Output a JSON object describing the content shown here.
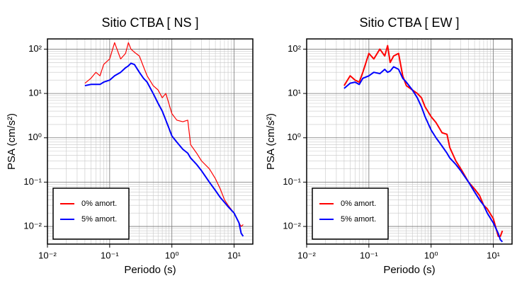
{
  "chart_data": [
    {
      "type": "line",
      "title": "Sitio CTBA [ NS ]",
      "xlabel": "Periodo (s)",
      "ylabel": "PSA (cm/s²)",
      "xscale": "log",
      "yscale": "log",
      "grid": true,
      "legend": "lower left",
      "xlim": [
        0.01,
        20
      ],
      "ylim": [
        0.004,
        170
      ],
      "xticks": [
        {
          "value": 0.01,
          "label": "10⁻²"
        },
        {
          "value": 0.1,
          "label": "10⁻¹"
        },
        {
          "value": 1,
          "label": "10⁰"
        },
        {
          "value": 10,
          "label": "10¹"
        }
      ],
      "yticks": [
        {
          "value": 0.01,
          "label": "10⁻²"
        },
        {
          "value": 0.1,
          "label": "10⁻¹"
        },
        {
          "value": 1,
          "label": "10⁰"
        },
        {
          "value": 10,
          "label": "10¹"
        },
        {
          "value": 100,
          "label": "10²"
        }
      ],
      "x": [
        0.04,
        0.05,
        0.06,
        0.07,
        0.08,
        0.1,
        0.12,
        0.15,
        0.18,
        0.2,
        0.22,
        0.25,
        0.3,
        0.35,
        0.4,
        0.5,
        0.6,
        0.7,
        0.8,
        1.0,
        1.2,
        1.5,
        1.8,
        2,
        2.5,
        3,
        4,
        5,
        6,
        7,
        8,
        10,
        12,
        13,
        14
      ],
      "series": [
        {
          "name": "0% amort.",
          "color": "#ff0000",
          "width": 1.2,
          "values": [
            17,
            22,
            30,
            25,
            45,
            60,
            140,
            60,
            80,
            140,
            100,
            85,
            70,
            40,
            25,
            15,
            12,
            8,
            10,
            3.5,
            2.5,
            2.3,
            2.5,
            0.7,
            0.45,
            0.3,
            0.2,
            0.12,
            0.07,
            0.04,
            0.03,
            0.02,
            0.012,
            0.01,
            0.011
          ]
        },
        {
          "name": "5% amort.",
          "color": "#0000ff",
          "width": 2,
          "values": [
            15,
            16,
            16,
            16,
            18,
            20,
            25,
            30,
            38,
            42,
            48,
            45,
            30,
            22,
            18,
            10,
            6,
            4,
            2.5,
            1.1,
            0.8,
            0.55,
            0.45,
            0.35,
            0.25,
            0.18,
            0.1,
            0.065,
            0.045,
            0.035,
            0.028,
            0.02,
            0.012,
            0.007,
            0.006
          ]
        }
      ]
    },
    {
      "type": "line",
      "title": "Sitio CTBA [ EW ]",
      "xlabel": "Periodo (s)",
      "ylabel": "PSA (cm/s²)",
      "xscale": "log",
      "yscale": "log",
      "grid": true,
      "legend": "lower left",
      "xlim": [
        0.01,
        20
      ],
      "ylim": [
        0.004,
        170
      ],
      "xticks": [
        {
          "value": 0.01,
          "label": "10⁻²"
        },
        {
          "value": 0.1,
          "label": "10⁻¹"
        },
        {
          "value": 1,
          "label": "10⁰"
        },
        {
          "value": 10,
          "label": "10¹"
        }
      ],
      "yticks": [
        {
          "value": 0.01,
          "label": "10⁻²"
        },
        {
          "value": 0.1,
          "label": "10⁻¹"
        },
        {
          "value": 1,
          "label": "10⁰"
        },
        {
          "value": 10,
          "label": "10¹"
        },
        {
          "value": 100,
          "label": "10²"
        }
      ],
      "x": [
        0.04,
        0.05,
        0.06,
        0.07,
        0.08,
        0.1,
        0.12,
        0.15,
        0.18,
        0.2,
        0.22,
        0.25,
        0.3,
        0.35,
        0.4,
        0.5,
        0.6,
        0.7,
        0.8,
        1.0,
        1.2,
        1.5,
        1.8,
        2,
        2.5,
        3,
        4,
        5,
        6,
        7,
        8,
        10,
        12,
        13,
        14
      ],
      "series": [
        {
          "name": "0% amort.",
          "color": "#ff0000",
          "width": 2,
          "values": [
            15,
            25,
            20,
            18,
            30,
            80,
            60,
            100,
            70,
            120,
            50,
            70,
            80,
            25,
            15,
            12,
            10,
            8,
            5,
            3,
            2.2,
            1.3,
            1.2,
            0.6,
            0.3,
            0.2,
            0.1,
            0.07,
            0.05,
            0.03,
            0.025,
            0.015,
            0.006,
            0.006,
            0.008
          ]
        },
        {
          "name": "5% amort.",
          "color": "#0000ff",
          "width": 2,
          "values": [
            13,
            17,
            18,
            16,
            22,
            25,
            30,
            28,
            35,
            30,
            32,
            40,
            35,
            22,
            18,
            12,
            8,
            5,
            3,
            1.5,
            1.0,
            0.65,
            0.45,
            0.35,
            0.25,
            0.18,
            0.1,
            0.06,
            0.04,
            0.03,
            0.02,
            0.012,
            0.007,
            0.005,
            0.0045
          ]
        }
      ]
    }
  ]
}
